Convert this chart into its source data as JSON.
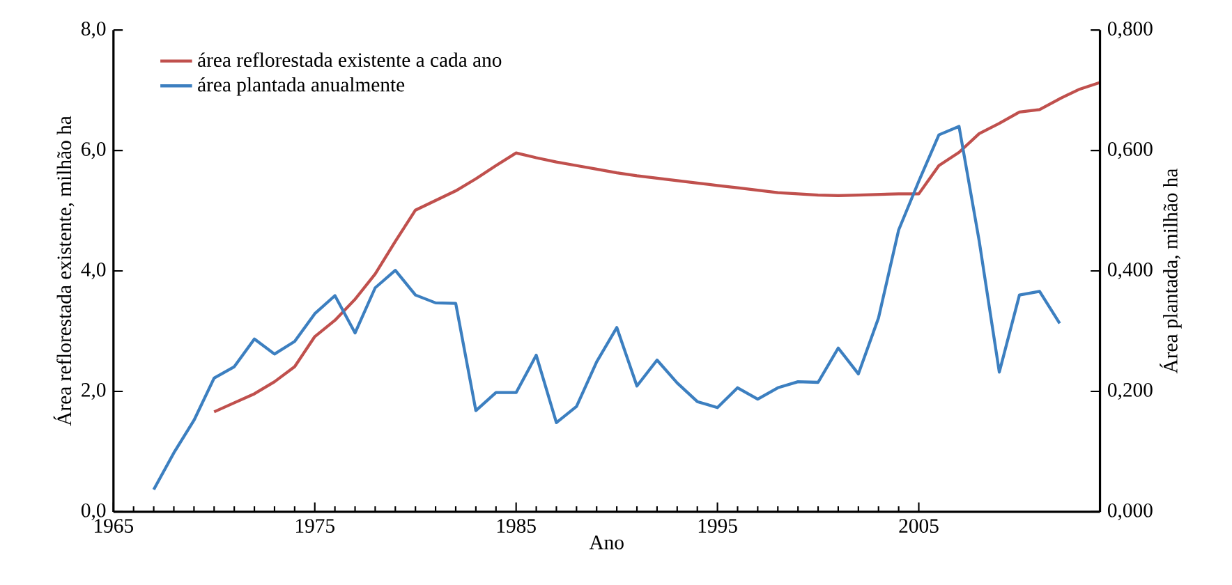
{
  "chart_data": {
    "type": "line",
    "xlabel": "Ano",
    "ylabel": "Área reflorestada existente, milhão ha",
    "y2label": "Área plantada, milhão ha",
    "xlim": [
      1965,
      2014
    ],
    "xticks": [
      1965,
      1975,
      1985,
      1995,
      2005
    ],
    "ylim": [
      0,
      8
    ],
    "yticks": [
      {
        "value": 0,
        "label": "0,0"
      },
      {
        "value": 2,
        "label": "2,0"
      },
      {
        "value": 4,
        "label": "4,0"
      },
      {
        "value": 6,
        "label": "6,0"
      },
      {
        "value": 8,
        "label": "8,0"
      }
    ],
    "y2lim": [
      0,
      0.8
    ],
    "y2ticks": [
      {
        "value": 0,
        "label": "0,000"
      },
      {
        "value": 0.2,
        "label": "0,200"
      },
      {
        "value": 0.4,
        "label": "0,400"
      },
      {
        "value": 0.6,
        "label": "0,600"
      },
      {
        "value": 0.8,
        "label": "0,800"
      }
    ],
    "legend": "top left",
    "grid": false,
    "marker": "none",
    "line_style": "solid",
    "series": [
      {
        "name": "área reflorestada existente a cada ano",
        "color": "#c0504d",
        "axis": "y",
        "x": [
          1970,
          1971,
          1972,
          1973,
          1974,
          1975,
          1976,
          1977,
          1978,
          1979,
          1980,
          1981,
          1982,
          1983,
          1984,
          1985,
          1986,
          1987,
          1988,
          1989,
          1990,
          1991,
          1992,
          1993,
          1994,
          1995,
          1996,
          1997,
          1998,
          1999,
          2000,
          2001,
          2002,
          2003,
          2004,
          2005,
          2006,
          2007,
          2008,
          2009,
          2010,
          2011,
          2012,
          2013,
          2014
        ],
        "values": [
          1.66,
          1.81,
          1.96,
          2.16,
          2.41,
          2.91,
          3.18,
          3.53,
          3.95,
          4.49,
          5.01,
          5.17,
          5.33,
          5.53,
          5.75,
          5.96,
          5.88,
          5.81,
          5.75,
          5.69,
          5.63,
          5.58,
          5.54,
          5.5,
          5.46,
          5.42,
          5.38,
          5.34,
          5.3,
          5.28,
          5.26,
          5.25,
          5.26,
          5.27,
          5.28,
          5.28,
          5.75,
          5.97,
          6.28,
          6.45,
          6.64,
          6.68,
          6.86,
          7.02,
          7.13
        ]
      },
      {
        "name": "área plantada anualmente",
        "color": "#3c7fc0",
        "axis": "y2",
        "x": [
          1967,
          1968,
          1969,
          1970,
          1971,
          1972,
          1973,
          1974,
          1975,
          1976,
          1977,
          1978,
          1979,
          1980,
          1981,
          1982,
          1983,
          1984,
          1985,
          1986,
          1987,
          1988,
          1989,
          1990,
          1991,
          1992,
          1993,
          1994,
          1995,
          1996,
          1997,
          1998,
          1999,
          2000,
          2001,
          2002,
          2003,
          2004,
          2005,
          2006,
          2007,
          2008,
          2009,
          2010,
          2011,
          2012
        ],
        "values": [
          0.037,
          0.098,
          0.152,
          0.222,
          0.241,
          0.287,
          0.262,
          0.283,
          0.329,
          0.359,
          0.297,
          0.372,
          0.401,
          0.36,
          0.347,
          0.346,
          0.168,
          0.198,
          0.198,
          0.26,
          0.148,
          0.175,
          0.249,
          0.306,
          0.209,
          0.252,
          0.214,
          0.183,
          0.173,
          0.206,
          0.187,
          0.206,
          0.216,
          0.215,
          0.272,
          0.229,
          0.322,
          0.468,
          0.549,
          0.626,
          0.64,
          0.45,
          0.232,
          0.36,
          0.366,
          0.313
        ]
      }
    ]
  }
}
